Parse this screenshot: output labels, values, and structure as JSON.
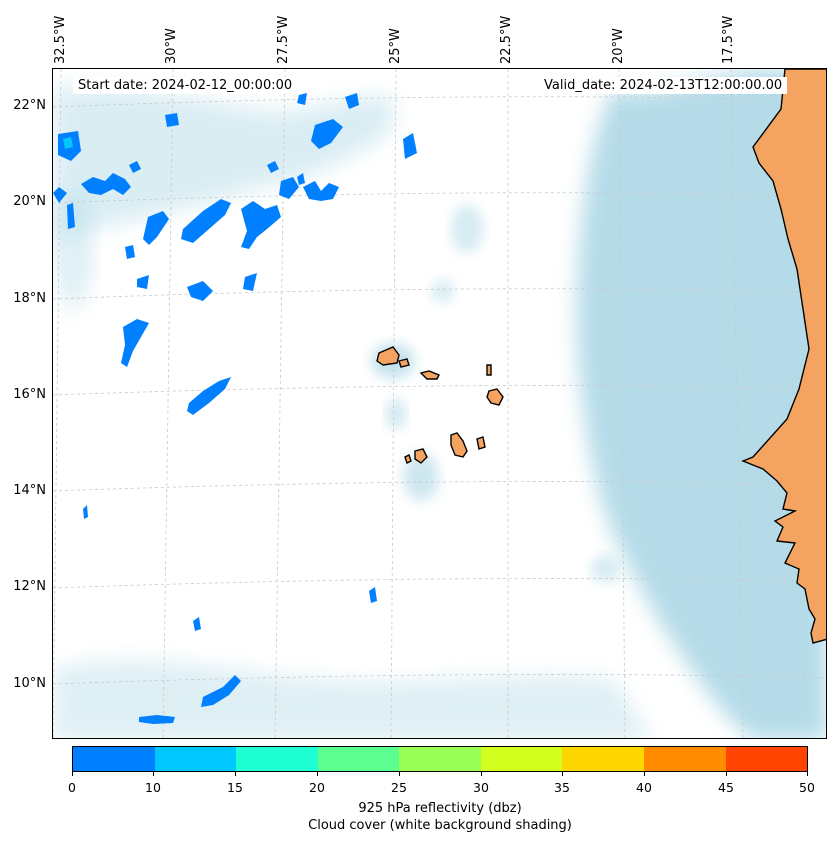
{
  "map": {
    "start_date_text": "Start date: 2024-02-12_00:00:00",
    "valid_date_text": "Valid_date: 2024-02-13T12:00:00.00",
    "longitude_labels": [
      "32.5°W",
      "30°W",
      "27.5°W",
      "25°W",
      "22.5°W",
      "20°W",
      "17.5°W"
    ],
    "latitude_labels": [
      "22°N",
      "20°N",
      "18°N",
      "16°N",
      "14°N",
      "12°N",
      "10°N"
    ],
    "colors": {
      "land": "#f4a460",
      "coastline": "#000000",
      "cloud_shading": "#add8e6",
      "gridline": "#c8c8c8"
    },
    "layers": [
      "925 hPa reflectivity",
      "cloud cover",
      "coastlines",
      "gridlines"
    ]
  },
  "colorbar": {
    "tick_labels": [
      "0",
      "10",
      "15",
      "20",
      "25",
      "30",
      "35",
      "40",
      "45",
      "50"
    ],
    "colors": [
      "#0080ff",
      "#00c8ff",
      "#1effd4",
      "#5cff8f",
      "#99ff55",
      "#d4ff1e",
      "#ffd700",
      "#ff8c00",
      "#ff4500"
    ],
    "label": "925 hPa reflectivity (dbz)",
    "sublabel": "Cloud cover (white background shading)"
  }
}
